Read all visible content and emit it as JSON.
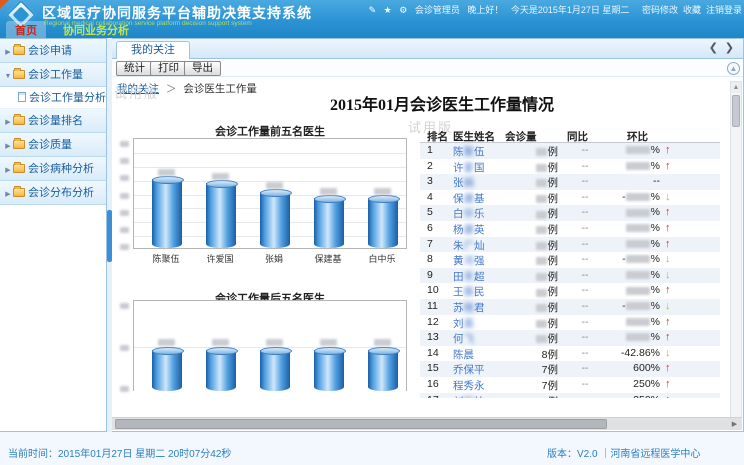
{
  "app": {
    "title": "区域医疗协同服务平台辅助决策支持系统",
    "subtitle": "Regional medical collaboration service platform decision support system",
    "user_bar": {
      "icons": [
        "pencil-icon",
        "star-icon",
        "gear-icon"
      ],
      "user": "会诊管理员",
      "greeting": "晚上好！",
      "date_info": "今天是2015年1月27日 星期二",
      "links": [
        "密码修改",
        "收藏",
        "注销登录"
      ]
    },
    "nav_tabs": [
      {
        "key": "home",
        "label": "首页"
      },
      {
        "key": "biz",
        "label": "协同业务分析"
      }
    ]
  },
  "sidebar": {
    "items": [
      {
        "key": "consult-apply",
        "label": "会诊申请",
        "expanded": false,
        "children": []
      },
      {
        "key": "consult-workload",
        "label": "会诊工作量",
        "expanded": true,
        "children": [
          {
            "key": "workload-analysis",
            "label": "会诊工作量分析"
          }
        ]
      },
      {
        "key": "consult-ranking",
        "label": "会诊量排名",
        "expanded": false,
        "children": []
      },
      {
        "key": "consult-quality",
        "label": "会诊质量",
        "expanded": false,
        "children": []
      },
      {
        "key": "consult-disease",
        "label": "会诊病种分析",
        "expanded": false,
        "children": []
      },
      {
        "key": "consult-distribution",
        "label": "会诊分布分析",
        "expanded": false,
        "children": []
      }
    ]
  },
  "content": {
    "tab_label": "我的关注",
    "tab_nav": {
      "prev": "❮",
      "next": "❯"
    },
    "toolbar": [
      {
        "key": "stats",
        "label": "统计"
      },
      {
        "key": "print",
        "label": "打印"
      },
      {
        "key": "export",
        "label": "导出"
      }
    ],
    "breadcrumb": {
      "link": "我的关注",
      "sep": "＞",
      "current": "会诊医生工作量"
    },
    "watermark": "试用版",
    "page_title": "2015年01月会诊医生工作量情况"
  },
  "chart_data": [
    {
      "type": "bar",
      "title": "会诊工作量前五名医生",
      "categories": [
        "陈聚伍",
        "许爱国",
        "张娟",
        "保建基",
        "白中乐"
      ],
      "values_redacted": true,
      "relative_heights": [
        0.62,
        0.59,
        0.5,
        0.45,
        0.45
      ],
      "yticks_redacted": true,
      "grid": true,
      "bar_color": "#3f8fd2",
      "legend": "none"
    },
    {
      "type": "bar",
      "title": "会诊工作量后五名医生",
      "categories": [
        "",
        "",
        "",
        "",
        ""
      ],
      "values_redacted": true,
      "relative_heights": [
        0.45,
        0.45,
        0.45,
        0.45,
        0.45
      ],
      "yticks_redacted": true,
      "grid": true,
      "bar_color": "#3f8fd2",
      "legend": "none",
      "note": "chart bottom cut off by viewport; category labels not visible"
    }
  ],
  "table": {
    "columns": [
      "排名",
      "医生姓名",
      "会诊量",
      "同比",
      "环比"
    ],
    "unit_suffix": "例",
    "rows": [
      {
        "rank": "1",
        "name": "陈聚伍",
        "name_blur": true,
        "volume": "",
        "volume_blur": true,
        "yoy": "--",
        "mom": "",
        "mom_blur": true,
        "mom_neg": false,
        "trend": "up"
      },
      {
        "rank": "2",
        "name": "许爱国",
        "name_blur": true,
        "volume": "",
        "volume_blur": true,
        "yoy": "--",
        "mom": "",
        "mom_blur": true,
        "mom_neg": false,
        "trend": "up"
      },
      {
        "rank": "3",
        "name": "张娟",
        "name_blur": true,
        "volume": "",
        "volume_blur": true,
        "yoy": "--",
        "mom": "--",
        "mom_blur": false,
        "mom_neg": false,
        "trend": "none"
      },
      {
        "rank": "4",
        "name": "保建基",
        "name_blur": true,
        "volume": "",
        "volume_blur": true,
        "yoy": "--",
        "mom": "",
        "mom_blur": true,
        "mom_neg": true,
        "trend": "down"
      },
      {
        "rank": "5",
        "name": "白中乐",
        "name_blur": true,
        "volume": "",
        "volume_blur": true,
        "yoy": "--",
        "mom": "",
        "mom_blur": true,
        "mom_neg": false,
        "trend": "up"
      },
      {
        "rank": "6",
        "name": "杨建英",
        "name_blur": true,
        "volume": "",
        "volume_blur": true,
        "yoy": "--",
        "mom": "",
        "mom_blur": true,
        "mom_neg": false,
        "trend": "up"
      },
      {
        "rank": "7",
        "name": "朱广灿",
        "name_blur": true,
        "volume": "",
        "volume_blur": true,
        "yoy": "--",
        "mom": "",
        "mom_blur": true,
        "mom_neg": false,
        "trend": "up"
      },
      {
        "rank": "8",
        "name": "黄河强",
        "name_blur": true,
        "volume": "",
        "volume_blur": true,
        "yoy": "--",
        "mom": "",
        "mom_blur": true,
        "mom_neg": true,
        "trend": "down"
      },
      {
        "rank": "9",
        "name": "田丰超",
        "name_blur": true,
        "volume": "",
        "volume_blur": true,
        "yoy": "--",
        "mom": "",
        "mom_blur": true,
        "mom_neg": false,
        "trend": "down"
      },
      {
        "rank": "10",
        "name": "王振民",
        "name_blur": true,
        "volume": "",
        "volume_blur": true,
        "yoy": "--",
        "mom": "",
        "mom_blur": true,
        "mom_neg": false,
        "trend": "up"
      },
      {
        "rank": "11",
        "name": "苏晓君",
        "name_blur": true,
        "volume": "",
        "volume_blur": true,
        "yoy": "--",
        "mom": "",
        "mom_blur": true,
        "mom_neg": true,
        "trend": "down"
      },
      {
        "rank": "12",
        "name": "刘英",
        "name_blur": true,
        "volume": "",
        "volume_blur": true,
        "yoy": "--",
        "mom": "",
        "mom_blur": true,
        "mom_neg": false,
        "trend": "up"
      },
      {
        "rank": "13",
        "name": "何飞",
        "name_blur": true,
        "volume": "",
        "volume_blur": true,
        "yoy": "--",
        "mom": "",
        "mom_blur": true,
        "mom_neg": false,
        "trend": "up"
      },
      {
        "rank": "14",
        "name": "陈晨",
        "name_blur": false,
        "volume": "8",
        "volume_blur": false,
        "yoy": "--",
        "mom": "-42.86%",
        "mom_blur": false,
        "mom_neg": true,
        "trend": "down"
      },
      {
        "rank": "15",
        "name": "乔保平",
        "name_blur": false,
        "volume": "7",
        "volume_blur": false,
        "yoy": "--",
        "mom": "600%",
        "mom_blur": false,
        "mom_neg": false,
        "trend": "up"
      },
      {
        "rank": "16",
        "name": "程秀永",
        "name_blur": false,
        "volume": "7",
        "volume_blur": false,
        "yoy": "--",
        "mom": "250%",
        "mom_blur": false,
        "mom_neg": false,
        "trend": "up"
      },
      {
        "rank": "17",
        "name": "刘松柏",
        "name_blur": true,
        "volume": "7",
        "volume_blur": false,
        "yoy": "--",
        "mom": "250%",
        "mom_blur": false,
        "mom_neg": false,
        "trend": "up"
      }
    ]
  },
  "statusbar": {
    "left": "当前时间：2015年01月27日 星期二 20时07分42秒",
    "right": "版本：V2.0 ｜河南省远程医学中心"
  }
}
